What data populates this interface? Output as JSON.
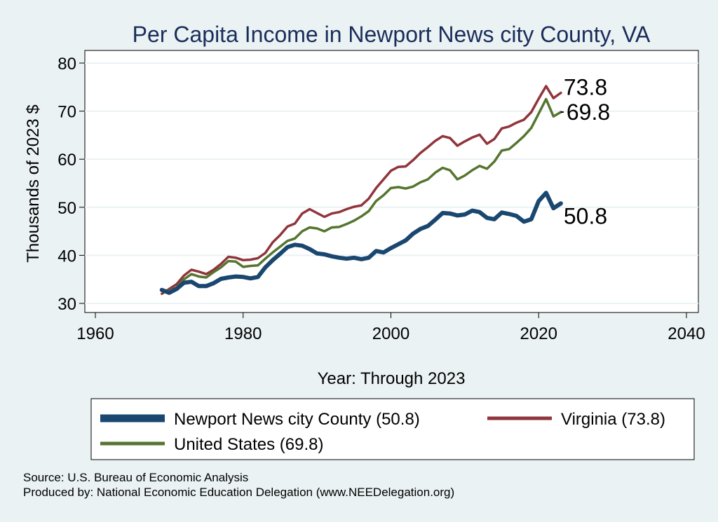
{
  "colors": {
    "background": "#eaf2f3",
    "county": "#1a476f",
    "virginia": "#90353b",
    "us": "#55752f",
    "grid": "#eaf2f3",
    "title": "#1a2d5a"
  },
  "chart_data": {
    "type": "line",
    "title": "Per Capita Income in Newport News city County, VA",
    "xlabel": "Year: Through 2023",
    "ylabel": "Thousands of 2023 $",
    "xlim": [
      1960,
      2040
    ],
    "ylim": [
      30,
      80
    ],
    "xticks": [
      "1960",
      "1980",
      "2000",
      "2020",
      "2040"
    ],
    "yticks": [
      "30",
      "40",
      "50",
      "60",
      "70",
      "80"
    ],
    "grid": true,
    "legend_position": "bottom",
    "x": [
      1969,
      1970,
      1971,
      1972,
      1973,
      1974,
      1975,
      1976,
      1977,
      1978,
      1979,
      1980,
      1981,
      1982,
      1983,
      1984,
      1985,
      1986,
      1987,
      1988,
      1989,
      1990,
      1991,
      1992,
      1993,
      1994,
      1995,
      1996,
      1997,
      1998,
      1999,
      2000,
      2001,
      2002,
      2003,
      2004,
      2005,
      2006,
      2007,
      2008,
      2009,
      2010,
      2011,
      2012,
      2013,
      2014,
      2015,
      2016,
      2017,
      2018,
      2019,
      2020,
      2021,
      2022,
      2023
    ],
    "series": [
      {
        "name": "Newport News city County (50.8)",
        "key": "county",
        "end_label": "50.8",
        "values": [
          32.8,
          32.2,
          33.0,
          34.3,
          34.5,
          33.6,
          33.6,
          34.2,
          35.1,
          35.4,
          35.6,
          35.5,
          35.2,
          35.5,
          37.5,
          39.0,
          40.3,
          41.7,
          42.2,
          42.0,
          41.3,
          40.4,
          40.2,
          39.8,
          39.5,
          39.3,
          39.5,
          39.2,
          39.5,
          40.9,
          40.6,
          41.5,
          42.3,
          43.1,
          44.5,
          45.5,
          46.1,
          47.4,
          48.8,
          48.7,
          48.3,
          48.5,
          49.3,
          49.0,
          47.8,
          47.5,
          48.9,
          48.6,
          48.2,
          47.0,
          47.5,
          51.3,
          53.0,
          49.8,
          50.8
        ]
      },
      {
        "name": "Virginia (73.8)",
        "key": "virginia",
        "end_label": "73.8",
        "values": [
          32.0,
          33.0,
          34.0,
          35.8,
          37.0,
          36.6,
          36.1,
          37.0,
          38.2,
          39.7,
          39.5,
          39.0,
          39.1,
          39.4,
          40.5,
          42.7,
          44.2,
          46.0,
          46.6,
          48.7,
          49.6,
          48.8,
          48.0,
          48.7,
          49.0,
          49.6,
          50.1,
          50.4,
          51.8,
          54.0,
          55.8,
          57.6,
          58.4,
          58.5,
          59.8,
          61.3,
          62.5,
          63.8,
          64.8,
          64.4,
          62.8,
          63.7,
          64.5,
          65.1,
          63.2,
          64.2,
          66.4,
          66.8,
          67.6,
          68.2,
          69.8,
          72.6,
          75.2,
          72.7,
          73.8
        ]
      },
      {
        "name": "United States (69.8)",
        "key": "us",
        "end_label": "69.8",
        "values": [
          32.8,
          32.6,
          33.3,
          35.0,
          36.1,
          35.6,
          35.4,
          36.5,
          37.5,
          38.8,
          38.7,
          37.6,
          37.8,
          37.9,
          39.3,
          40.6,
          41.8,
          43.0,
          43.5,
          45.0,
          45.8,
          45.6,
          45.0,
          45.8,
          45.9,
          46.5,
          47.2,
          48.1,
          49.2,
          51.3,
          52.5,
          54.0,
          54.2,
          53.9,
          54.3,
          55.2,
          55.8,
          57.2,
          58.2,
          57.7,
          55.8,
          56.6,
          57.7,
          58.6,
          58.0,
          59.5,
          61.8,
          62.1,
          63.4,
          64.8,
          66.5,
          69.5,
          72.5,
          68.9,
          69.8
        ]
      }
    ]
  },
  "legend": {
    "items": [
      {
        "key": "county",
        "label": "Newport News city County (50.8)"
      },
      {
        "key": "virginia",
        "label": "Virginia (73.8)"
      },
      {
        "key": "us",
        "label": "United States (69.8)"
      }
    ]
  },
  "notes": {
    "source": "Source: U.S. Bureau of Economic Analysis",
    "produced": "Produced by: National Economic Education Delegation (www.NEEDelegation.org)"
  }
}
